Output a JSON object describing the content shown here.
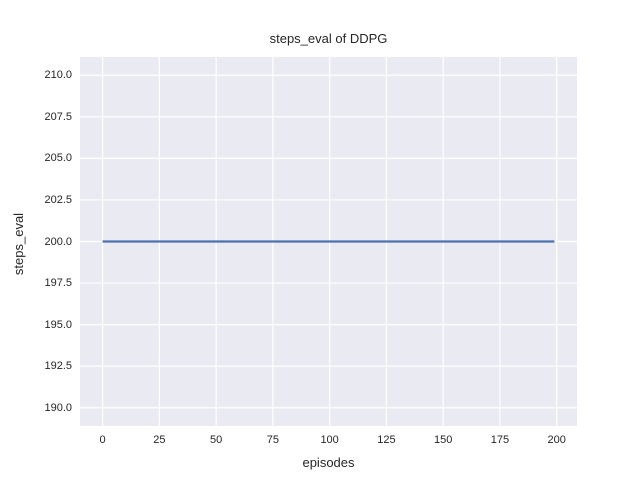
{
  "chart_data": {
    "type": "line",
    "title": "steps_eval of DDPG",
    "xlabel": "episodes",
    "ylabel": "steps_eval",
    "xlim": [
      -9.95,
      208.95
    ],
    "ylim": [
      188.9,
      211.1
    ],
    "xticks": [
      "0",
      "25",
      "50",
      "75",
      "100",
      "125",
      "150",
      "175",
      "200"
    ],
    "yticks": [
      "190.0",
      "192.5",
      "195.0",
      "197.5",
      "200.0",
      "202.5",
      "205.0",
      "207.5",
      "210.0"
    ],
    "grid": true,
    "legend": "none",
    "series": [
      {
        "name": "steps_eval",
        "description": "constant value 200 for every episode from 0 to 199",
        "x": [
          0,
          199
        ],
        "y": [
          200,
          200
        ],
        "color": "#4c72b0",
        "line_width": 2.2
      }
    ],
    "colors": {
      "figure_background": "#ffffff",
      "plot_background": "#eaeaf2",
      "grid_color": "#ffffff",
      "text_color": "#262626"
    }
  }
}
